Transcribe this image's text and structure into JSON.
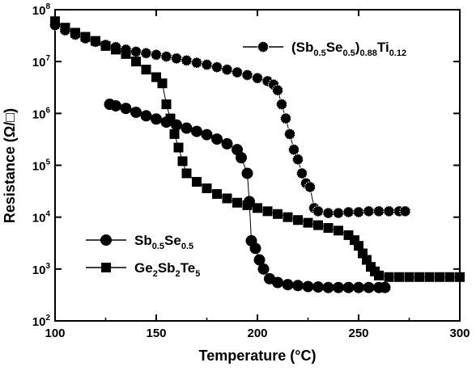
{
  "chart_data": {
    "type": "scatter",
    "xlabel": "Temperature (°C)",
    "ylabel": "Resistance (Ω/□)",
    "xlim": [
      100,
      300
    ],
    "ylim_log10": [
      2,
      8
    ],
    "y_scale": "log",
    "x_ticks": [
      "100",
      "150",
      "200",
      "250",
      "300"
    ],
    "y_tick_exponents": [
      "2",
      "3",
      "4",
      "5",
      "6",
      "7",
      "8"
    ],
    "y_tick_base": "10",
    "grid": false,
    "series": [
      {
        "key": "sbse_ti",
        "marker": "circle-dotted",
        "color": "#000000",
        "legend_parts": [
          {
            "t": "(Sb",
            "sub": false
          },
          {
            "t": "0.5",
            "sub": true
          },
          {
            "t": "Se",
            "sub": false
          },
          {
            "t": "0.5",
            "sub": true
          },
          {
            "t": ")",
            "sub": false
          },
          {
            "t": "0.88",
            "sub": true
          },
          {
            "t": "Ti",
            "sub": false
          },
          {
            "t": "0.12",
            "sub": true
          }
        ],
        "points": [
          [
            100,
            50000000
          ],
          [
            105,
            40000000
          ],
          [
            110,
            33000000
          ],
          [
            115,
            28000000
          ],
          [
            120,
            24000000
          ],
          [
            125,
            21000000
          ],
          [
            130,
            19000000
          ],
          [
            135,
            17000000
          ],
          [
            140,
            15500000
          ],
          [
            145,
            14500000
          ],
          [
            150,
            13500000
          ],
          [
            155,
            12500000
          ],
          [
            160,
            11500000
          ],
          [
            165,
            10500000
          ],
          [
            170,
            9500000
          ],
          [
            175,
            8700000
          ],
          [
            180,
            7800000
          ],
          [
            185,
            7000000
          ],
          [
            190,
            6200000
          ],
          [
            195,
            5500000
          ],
          [
            200,
            4800000
          ],
          [
            205,
            4200000
          ],
          [
            208,
            3600000
          ],
          [
            210,
            2800000
          ],
          [
            212,
            1500000
          ],
          [
            214,
            800000
          ],
          [
            216,
            400000
          ],
          [
            218,
            200000
          ],
          [
            220,
            130000
          ],
          [
            222,
            70000
          ],
          [
            224,
            45000
          ],
          [
            226,
            38000
          ],
          [
            228,
            15000
          ],
          [
            230,
            13000
          ],
          [
            235,
            12000
          ],
          [
            240,
            12000
          ],
          [
            245,
            12500
          ],
          [
            250,
            12500
          ],
          [
            255,
            13000
          ],
          [
            260,
            13000
          ],
          [
            265,
            13000
          ],
          [
            270,
            13000
          ],
          [
            273,
            13000
          ]
        ]
      },
      {
        "key": "sbse",
        "marker": "circle",
        "color": "#000000",
        "legend_parts": [
          {
            "t": "Sb",
            "sub": false
          },
          {
            "t": "0.5",
            "sub": true
          },
          {
            "t": "Se",
            "sub": false
          },
          {
            "t": "0.5",
            "sub": true
          }
        ],
        "points": [
          [
            127,
            1500000
          ],
          [
            130,
            1400000
          ],
          [
            135,
            1250000
          ],
          [
            140,
            1050000
          ],
          [
            145,
            900000
          ],
          [
            150,
            780000
          ],
          [
            155,
            680000
          ],
          [
            160,
            600000
          ],
          [
            165,
            520000
          ],
          [
            170,
            450000
          ],
          [
            175,
            390000
          ],
          [
            180,
            320000
          ],
          [
            185,
            260000
          ],
          [
            190,
            200000
          ],
          [
            192,
            140000
          ],
          [
            195,
            70000
          ],
          [
            196,
            20000
          ],
          [
            197,
            3500
          ],
          [
            199,
            2500
          ],
          [
            201,
            1500
          ],
          [
            203,
            1000
          ],
          [
            206,
            650
          ],
          [
            210,
            550
          ],
          [
            215,
            500
          ],
          [
            220,
            480
          ],
          [
            225,
            460
          ],
          [
            230,
            450
          ],
          [
            235,
            440
          ],
          [
            240,
            440
          ],
          [
            245,
            440
          ],
          [
            250,
            440
          ],
          [
            255,
            440
          ],
          [
            260,
            440
          ],
          [
            263,
            440
          ]
        ]
      },
      {
        "key": "gst",
        "marker": "square",
        "color": "#000000",
        "legend_parts": [
          {
            "t": "Ge",
            "sub": false
          },
          {
            "t": "2",
            "sub": true
          },
          {
            "t": "Sb",
            "sub": false
          },
          {
            "t": "2",
            "sub": true
          },
          {
            "t": "Te",
            "sub": false
          },
          {
            "t": "5",
            "sub": true
          }
        ],
        "points": [
          [
            100,
            60000000
          ],
          [
            105,
            45000000
          ],
          [
            110,
            36000000
          ],
          [
            115,
            30000000
          ],
          [
            120,
            25000000
          ],
          [
            125,
            20000000
          ],
          [
            130,
            17000000
          ],
          [
            135,
            14000000
          ],
          [
            140,
            10000000
          ],
          [
            145,
            7000000
          ],
          [
            150,
            5000000
          ],
          [
            153,
            3800000
          ],
          [
            155,
            1500000
          ],
          [
            157,
            800000
          ],
          [
            159,
            400000
          ],
          [
            161,
            220000
          ],
          [
            163,
            120000
          ],
          [
            165,
            70000
          ],
          [
            170,
            48000
          ],
          [
            175,
            36000
          ],
          [
            180,
            28000
          ],
          [
            185,
            23000
          ],
          [
            190,
            19000
          ],
          [
            195,
            17000
          ],
          [
            200,
            15000
          ],
          [
            205,
            13000
          ],
          [
            210,
            11500
          ],
          [
            215,
            10000
          ],
          [
            220,
            8800
          ],
          [
            225,
            7800
          ],
          [
            230,
            7000
          ],
          [
            235,
            6200
          ],
          [
            240,
            5500
          ],
          [
            245,
            4500
          ],
          [
            248,
            3600
          ],
          [
            250,
            2800
          ],
          [
            252,
            2000
          ],
          [
            254,
            1500
          ],
          [
            256,
            1100
          ],
          [
            258,
            900
          ],
          [
            260,
            750
          ],
          [
            265,
            700
          ],
          [
            270,
            700
          ],
          [
            275,
            700
          ],
          [
            280,
            700
          ],
          [
            285,
            700
          ],
          [
            290,
            700
          ],
          [
            295,
            700
          ],
          [
            300,
            700
          ]
        ]
      }
    ],
    "legend": [
      {
        "series": "sbse_ti",
        "placement": "top-right"
      },
      {
        "series": "sbse",
        "placement": "bottom-left"
      },
      {
        "series": "gst",
        "placement": "bottom-left"
      }
    ]
  }
}
